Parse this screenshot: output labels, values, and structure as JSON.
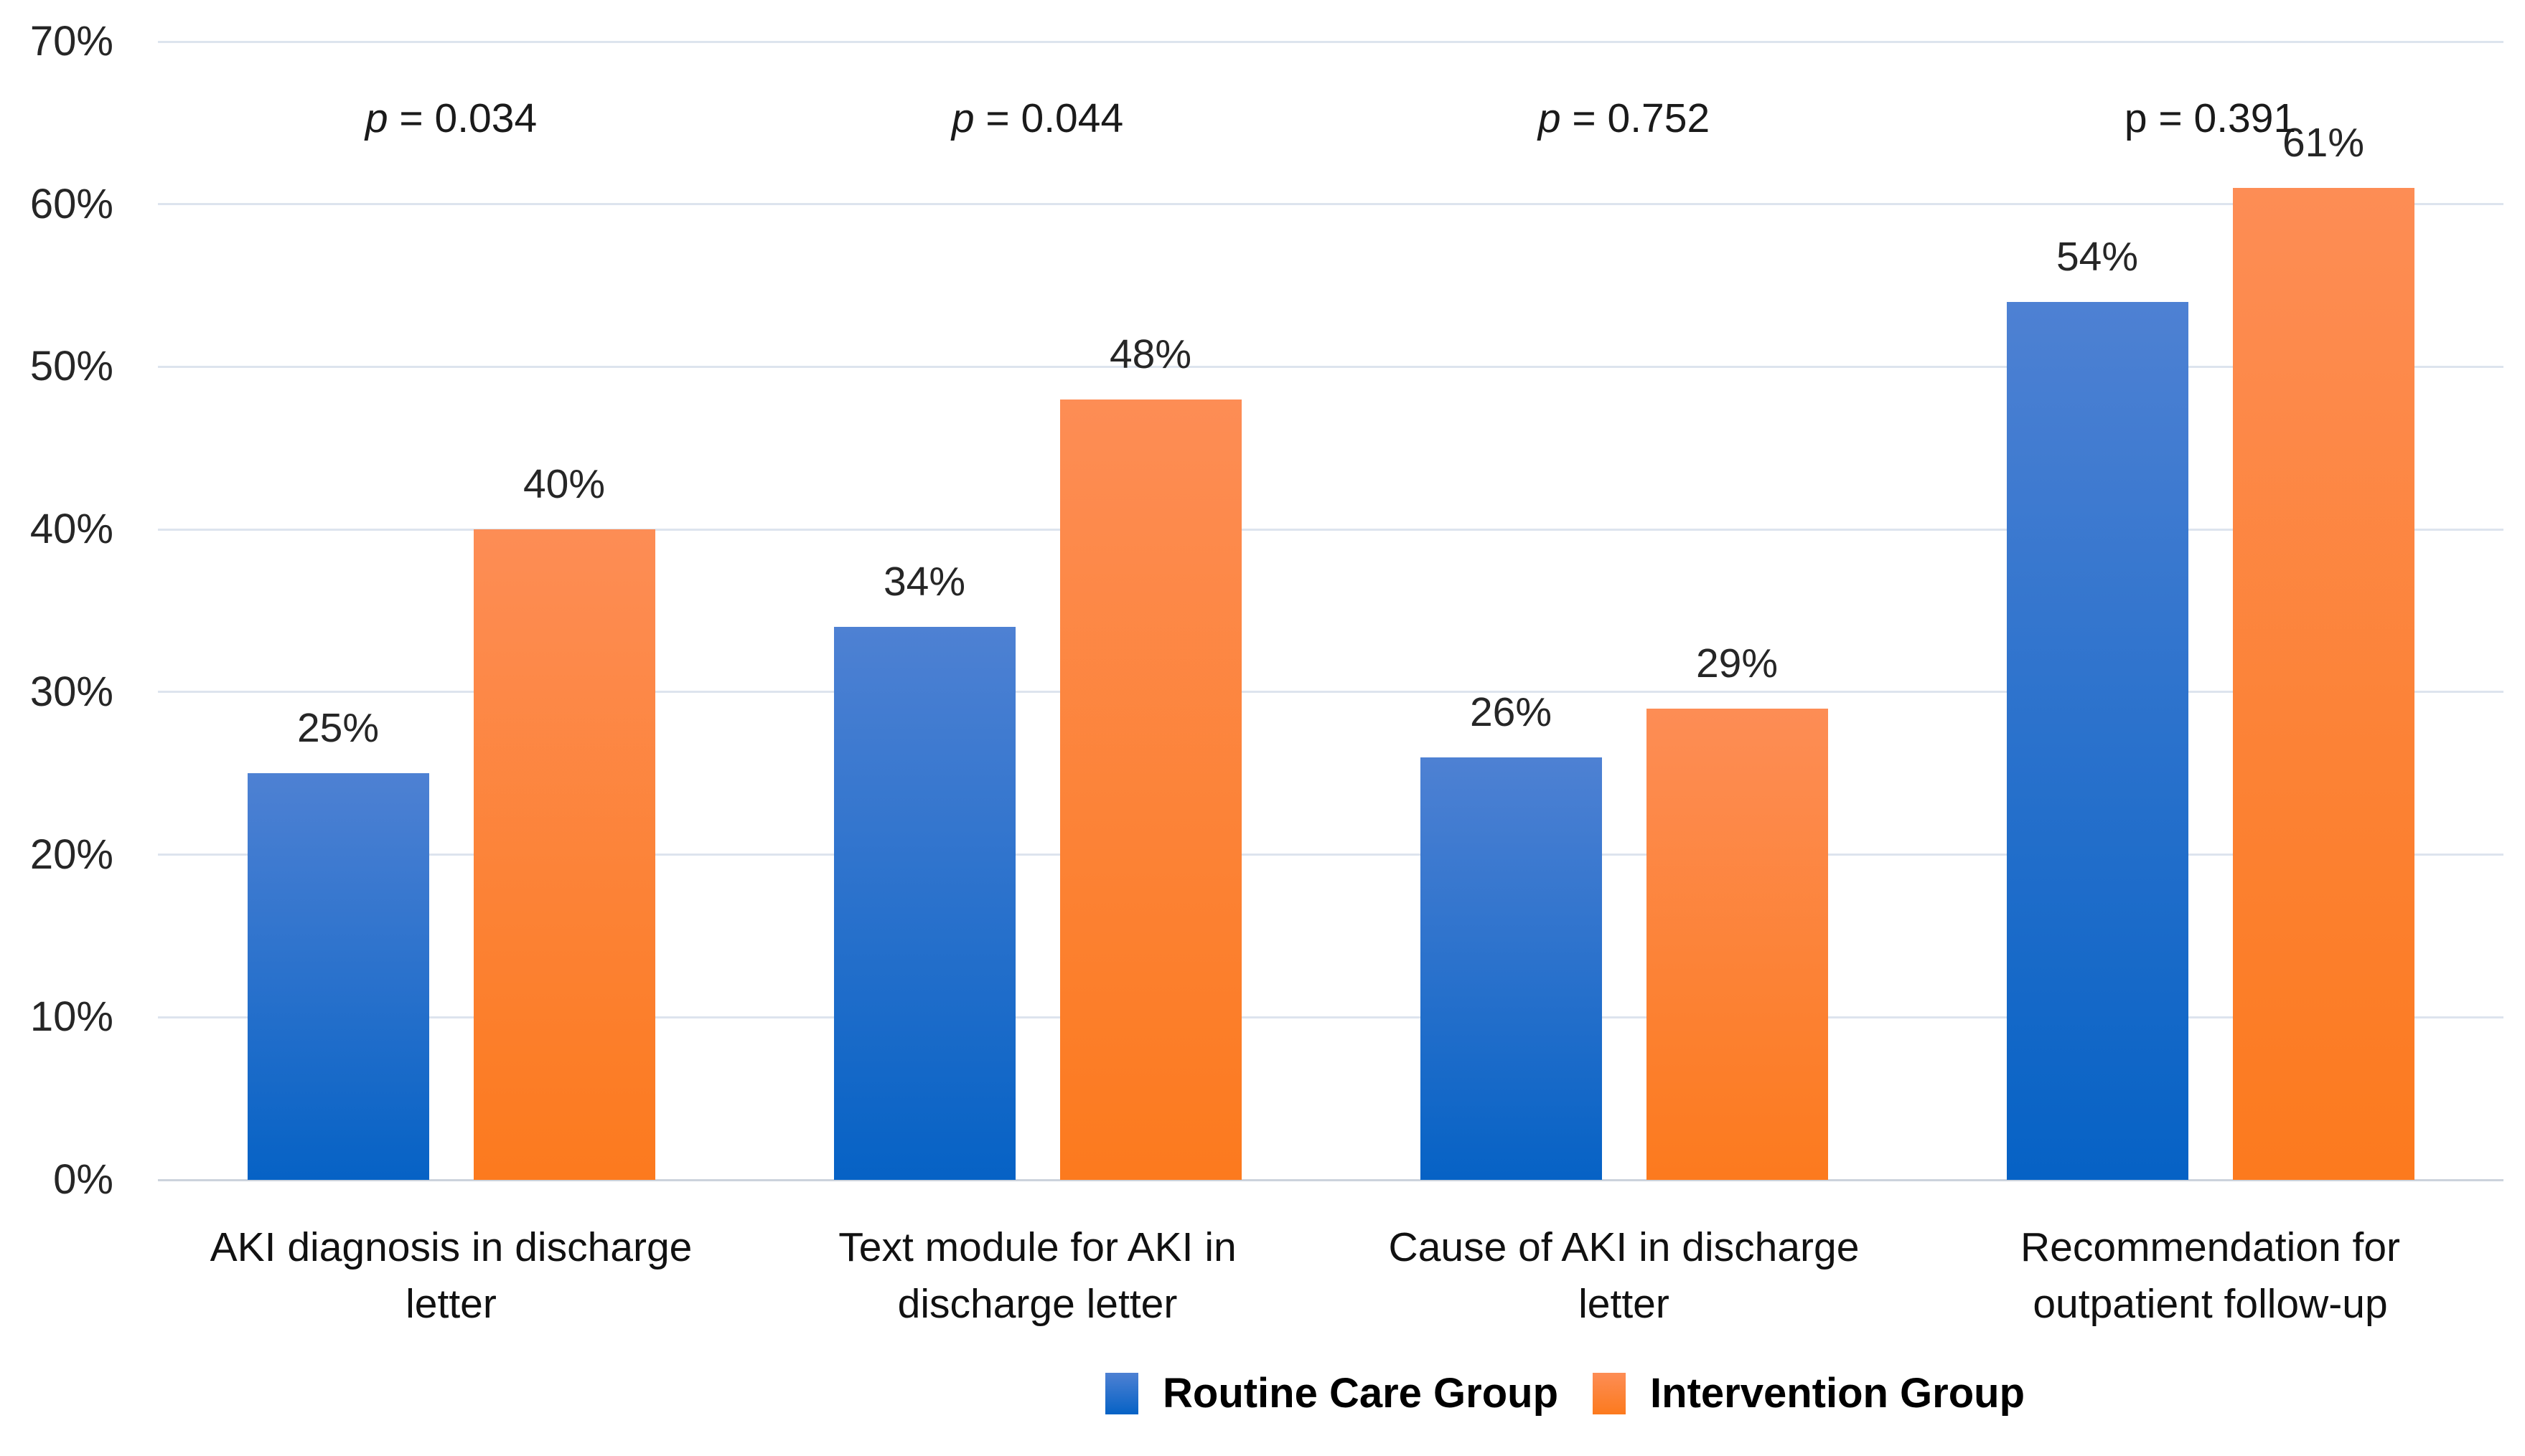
{
  "chart_data": {
    "type": "bar",
    "title": "",
    "xlabel": "",
    "ylabel": "",
    "categories": [
      "AKI diagnosis in discharge letter",
      "Text module for AKI in discharge letter",
      "Cause of AKI in discharge letter",
      "Recommendation for outpatient follow-up"
    ],
    "series": [
      {
        "name": "Routine Care Group",
        "values": [
          25,
          34,
          26,
          54
        ],
        "color_top": "#4E81D3",
        "color_bottom": "#0662C5"
      },
      {
        "name": "Intervention Group",
        "values": [
          40,
          48,
          29,
          61
        ],
        "color_top": "#FD8D55",
        "color_bottom": "#FC7A1E"
      }
    ],
    "value_suffix": "%",
    "data_labels": [
      [
        "25%",
        "34%",
        "26%",
        "54%"
      ],
      [
        "40%",
        "48%",
        "29%",
        "61%"
      ]
    ],
    "p_values": [
      {
        "symbol": "p",
        "rest": " = 0.034",
        "italic_symbol": true
      },
      {
        "symbol": "p",
        "rest": " = 0.044",
        "italic_symbol": true
      },
      {
        "symbol": "p",
        "rest": " = 0.752",
        "italic_symbol": true
      },
      {
        "symbol": "p",
        "rest": " = 0.391",
        "italic_symbol": false
      }
    ],
    "y_axis": {
      "ticks": [
        "70%",
        "60%",
        "50%",
        "40%",
        "30%",
        "20%",
        "10%",
        "0%"
      ],
      "min": 0,
      "max": 70,
      "grid": true
    },
    "legend": {
      "position": "bottom",
      "entries": [
        "Routine Care Group",
        "Intervention Group"
      ]
    },
    "colors": {
      "gridline": "#DDE4EE",
      "axis_line": "#CCD3DC",
      "tick_text": "#262626",
      "data_label_text": "#262626",
      "p_text": "#1A1A1A",
      "category_text": "#111111",
      "legend_text": "#000000",
      "background": "#FFFFFF"
    }
  }
}
